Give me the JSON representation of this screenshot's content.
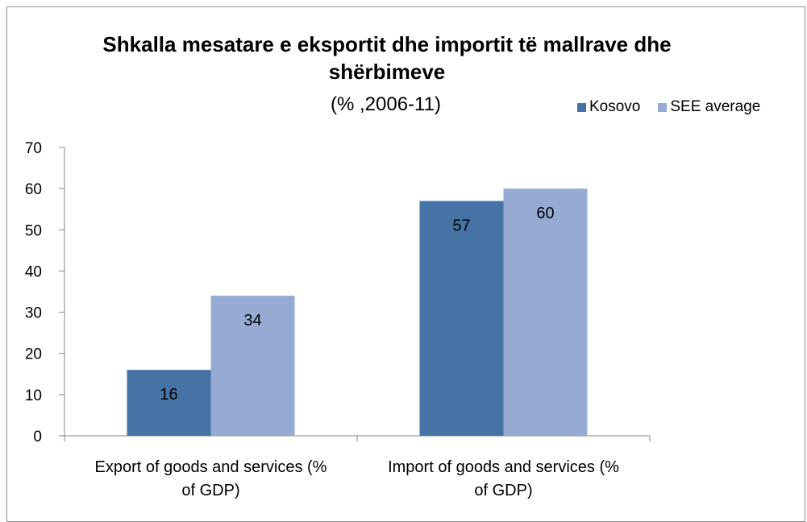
{
  "chart_data": {
    "type": "bar",
    "title": "Shkalla mesatare e eksportit dhe importit të mallrave dhe shërbimeve",
    "subtitle": "(% ,2006-11)",
    "categories": [
      [
        "Export of goods and services (%",
        "of GDP)"
      ],
      [
        "Import of goods and services (%",
        "of GDP)"
      ]
    ],
    "series": [
      {
        "name": "Kosovo",
        "values": [
          16,
          57
        ],
        "color": "#4673a6"
      },
      {
        "name": "SEE average",
        "values": [
          34,
          60
        ],
        "color": "#95abd3"
      }
    ],
    "ylim": [
      0,
      70
    ],
    "yticks": [
      0,
      10,
      20,
      30,
      40,
      50,
      60,
      70
    ],
    "legend_position": "top-right",
    "grid": false
  }
}
